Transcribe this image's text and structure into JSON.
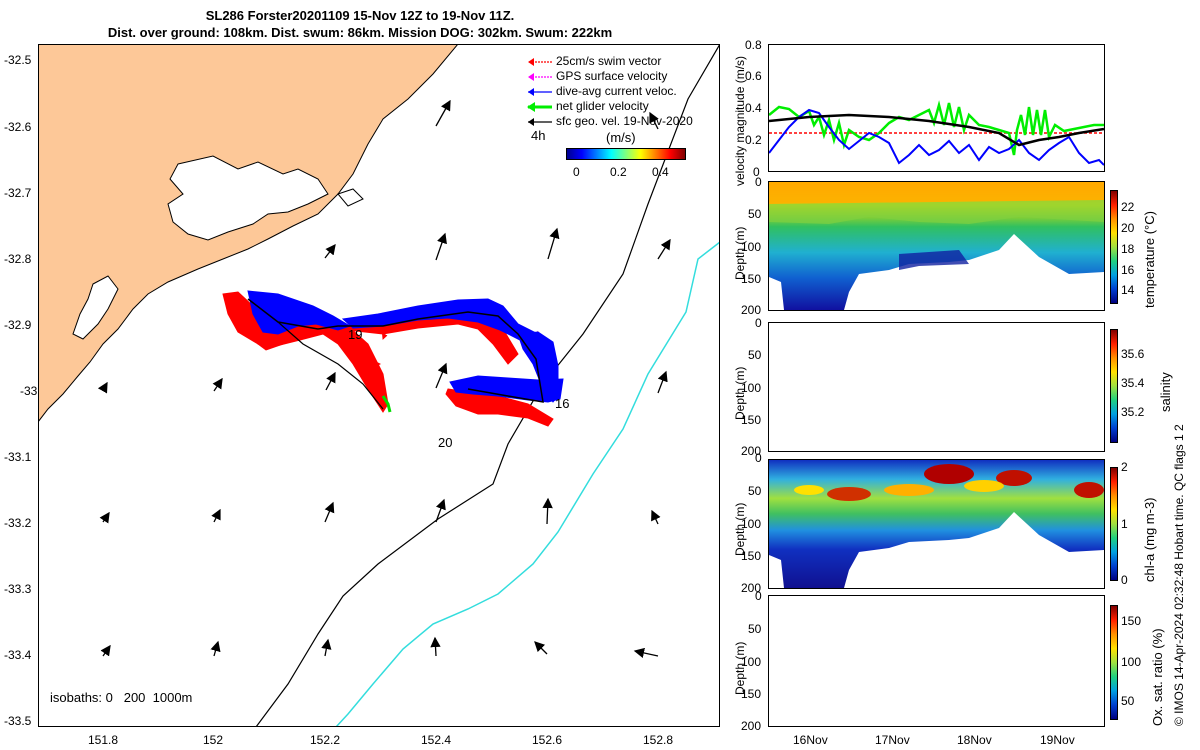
{
  "title": {
    "line1": "SL286 Forster20201109 15-Nov 12Z to 19-Nov 11Z.",
    "line2": "Dist. over ground: 108km. Dist. swum: 86km. Mission DOG: 302km. Swum: 222km"
  },
  "map": {
    "lat_ticks": [
      "-32.5",
      "-32.6",
      "-32.7",
      "-32.8",
      "-32.9",
      "-33",
      "-33.1",
      "-33.2",
      "-33.3",
      "-33.4",
      "-33.5"
    ],
    "lon_ticks": [
      "151.8",
      "152",
      "152.2",
      "152.4",
      "152.6",
      "152.8"
    ],
    "legend": [
      {
        "label": "25cm/s swim vector",
        "color": "#ff0000"
      },
      {
        "label": "GPS surface velocity",
        "color": "#ff00ff"
      },
      {
        "label": "dive-avg current veloc.",
        "color": "#0000ff"
      },
      {
        "label": "net glider velocity",
        "color": "#00ee00"
      },
      {
        "label": "sfc geo. vel. 19-Nov-2020",
        "color": "#000000"
      }
    ],
    "legend_extra": "4h",
    "colorbar_title": "(m/s)",
    "colorbar_ticks": [
      "0",
      "0.2",
      "0.4"
    ],
    "day_labels": [
      "19",
      "16",
      "20"
    ],
    "isobaths_text": "isobaths: 0   200  1000m",
    "colors": {
      "land": "#fdc898",
      "sea": "#ffffff",
      "isobath_200": "#000000",
      "isobath_1000": "#33dddd"
    }
  },
  "velocity_panel": {
    "ylabel": "velocity magnitude (m/s)",
    "yticks": [
      "0.8",
      "0.6",
      "0.4",
      "0.2",
      "0"
    ]
  },
  "temperature_panel": {
    "ylabel": "Depth (m)",
    "yticks": [
      "0",
      "50",
      "100",
      "150",
      "200"
    ],
    "cbar_label": "temperature (°C)",
    "cbar_ticks": [
      "22",
      "20",
      "18",
      "16",
      "14"
    ]
  },
  "salinity_panel": {
    "ylabel": "Depth (m)",
    "yticks": [
      "0",
      "50",
      "100",
      "150",
      "200"
    ],
    "cbar_label": "salinity",
    "cbar_ticks": [
      "35.6",
      "35.4",
      "35.2"
    ]
  },
  "chla_panel": {
    "ylabel": "Depth (m)",
    "yticks": [
      "0",
      "50",
      "100",
      "150",
      "200"
    ],
    "cbar_label": "chl-a (mg m-3)",
    "cbar_ticks": [
      "2",
      "1",
      "0"
    ]
  },
  "oxygen_panel": {
    "ylabel": "Depth (m)",
    "yticks": [
      "0",
      "50",
      "100",
      "150",
      "200"
    ],
    "cbar_label": "Ox. sat. ratio (%)",
    "cbar_ticks": [
      "150",
      "100",
      "50"
    ]
  },
  "time_ticks": [
    "16Nov",
    "17Nov",
    "18Nov",
    "19Nov"
  ],
  "footer": "© IMOS 14-Apr-2024 02:32:48 Hobart time. QC flags 1  2"
}
